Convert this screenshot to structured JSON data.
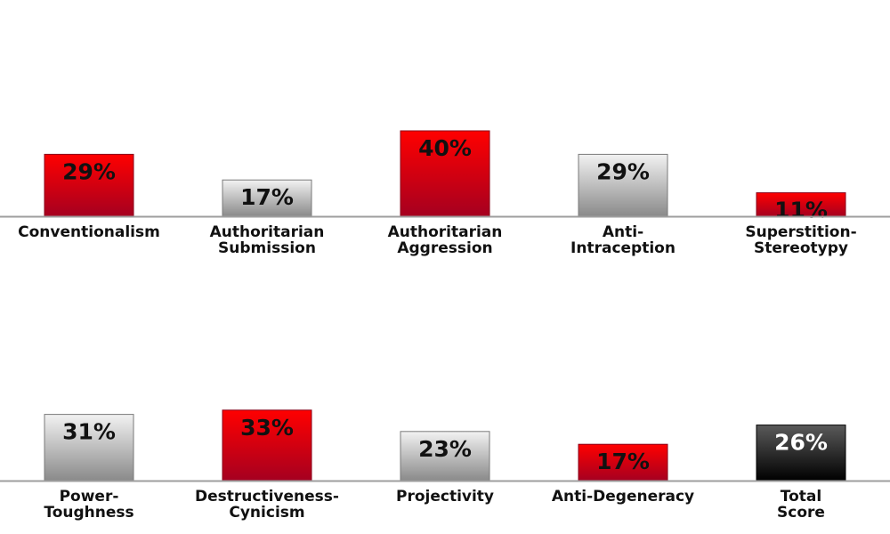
{
  "chart_data": [
    {
      "type": "bar",
      "categories": [
        [
          "Conventionalism"
        ],
        [
          "Authoritarian",
          "Submission"
        ],
        [
          "Authoritarian",
          "Aggression"
        ],
        [
          "Anti-",
          "Intraception"
        ],
        [
          "Superstition-",
          "Stereotypy"
        ]
      ],
      "values": [
        29,
        17,
        40,
        29,
        11
      ],
      "value_labels": [
        "29%",
        "17%",
        "40%",
        "29%",
        "11%"
      ],
      "bar_colors": [
        "red",
        "gray",
        "red",
        "gray",
        "red"
      ],
      "ylim": [
        0,
        100
      ],
      "xlabel": "",
      "ylabel": ""
    },
    {
      "type": "bar",
      "categories": [
        [
          "Power-",
          "Toughness"
        ],
        [
          "Destructiveness-",
          "Cynicism"
        ],
        [
          "Projectivity"
        ],
        [
          "Anti-Degeneracy"
        ],
        [
          "Total",
          "Score"
        ]
      ],
      "values": [
        31,
        33,
        23,
        17,
        26
      ],
      "value_labels": [
        "31%",
        "33%",
        "23%",
        "17%",
        "26%"
      ],
      "bar_colors": [
        "gray",
        "red",
        "gray",
        "red",
        "black"
      ],
      "ylim": [
        0,
        100
      ],
      "xlabel": "",
      "ylabel": ""
    }
  ],
  "colors": {
    "red_top": "#ff0000",
    "red_bottom": "#a50020",
    "gray_top": "#f2f2f2",
    "gray_bottom": "#8a8a8a",
    "black_top": "#5a5a5a",
    "black_bottom": "#000000",
    "baseline": "#9e9e9e",
    "text": "#111111"
  }
}
